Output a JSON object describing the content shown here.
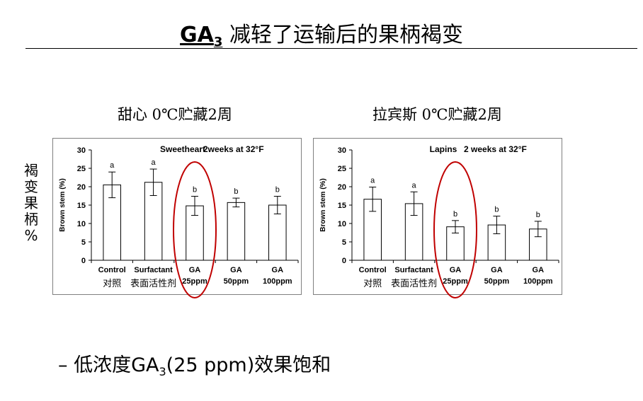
{
  "slide": {
    "title_ga": "GA",
    "title_sub": "3",
    "title_rest": " 减轻了运输后的果柄褐变",
    "subtitle_left": "甜心  0℃贮藏2周",
    "subtitle_right": "拉宾斯   0℃贮藏2周",
    "vertical_label_chars": [
      "褐",
      "变",
      "果",
      "柄",
      "%"
    ],
    "footer_prefix": "– 低浓度GA",
    "footer_sub": "3",
    "footer_suffix": "(25 ppm)效果饱和"
  },
  "chart_data": [
    {
      "type": "bar",
      "title": "Sweetheart",
      "annotation": "2weeks at 32°F",
      "ylabel": "Brown stem (%)",
      "ylim": [
        0,
        30
      ],
      "yticks": [
        "0",
        "5",
        "10",
        "15",
        "20",
        "25",
        "30"
      ],
      "categories": [
        [
          "Control"
        ],
        [
          "Surfactant"
        ],
        [
          "GA",
          "25ppm"
        ],
        [
          "GA",
          "50ppm"
        ],
        [
          "GA",
          "100ppm"
        ]
      ],
      "values": [
        20.5,
        21.2,
        14.8,
        15.7,
        15.0
      ],
      "errors": [
        3.5,
        3.6,
        2.6,
        1.2,
        2.4
      ],
      "sig_letters": [
        "a",
        "a",
        "b",
        "b",
        "b"
      ],
      "chinese_labels": [
        "对照",
        "表面活性剂"
      ],
      "highlighted_category": 2,
      "highlight_color": "#c00000"
    },
    {
      "type": "bar",
      "title": "Lapins",
      "annotation": "2 weeks at 32°F",
      "ylabel": "Brown stem (%)",
      "ylim": [
        0,
        30
      ],
      "yticks": [
        "0",
        "5",
        "10",
        "15",
        "20",
        "25",
        "30"
      ],
      "categories": [
        [
          "Control"
        ],
        [
          "Surfactant"
        ],
        [
          "GA",
          "25ppm"
        ],
        [
          "GA",
          "50ppm"
        ],
        [
          "GA",
          "100ppm"
        ]
      ],
      "values": [
        16.6,
        15.4,
        9.1,
        9.6,
        8.5
      ],
      "errors": [
        3.3,
        3.2,
        1.7,
        2.4,
        2.1
      ],
      "sig_letters": [
        "a",
        "a",
        "b",
        "b",
        "b"
      ],
      "chinese_labels": [
        "对照",
        "表面活性剂"
      ],
      "highlighted_category": 2,
      "highlight_color": "#c00000"
    }
  ]
}
